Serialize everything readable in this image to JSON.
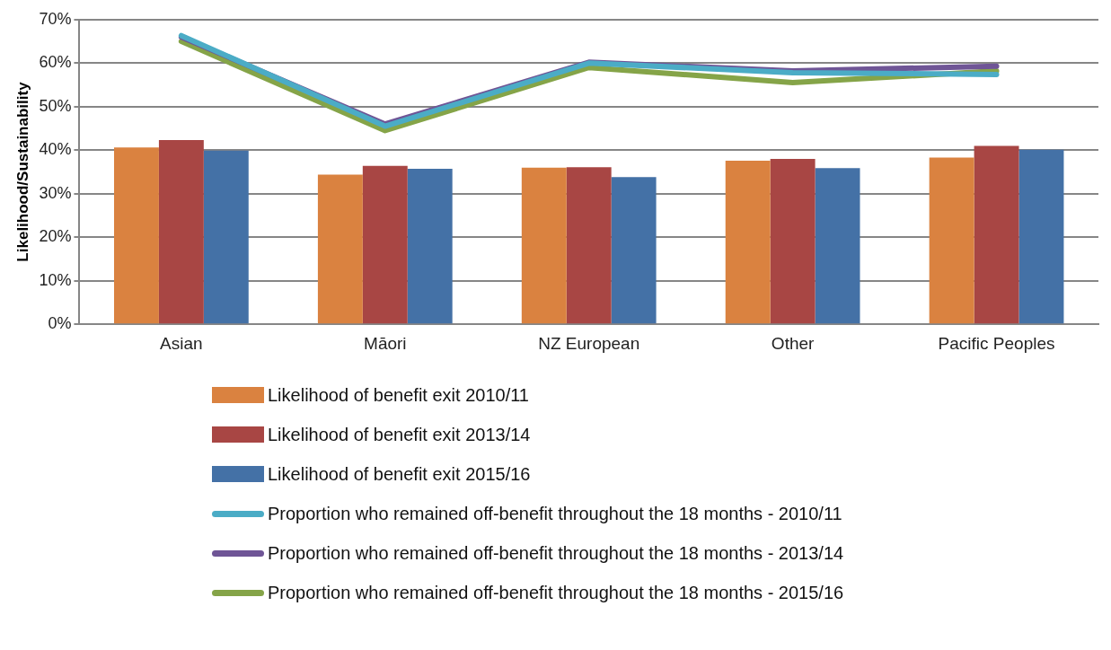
{
  "chart_data": {
    "type": "bar",
    "ylabel": "Likelihood/Sustainability",
    "categories": [
      "Asian",
      "Māori",
      "NZ European",
      "Other",
      "Pacific Peoples"
    ],
    "series": [
      {
        "name": "Likelihood of benefit exit 2010/11",
        "color": "#da8240",
        "values": [
          40.6,
          34.4,
          36.0,
          37.6,
          38.3
        ]
      },
      {
        "name": "Likelihood of benefit exit 2013/14",
        "color": "#a84644",
        "values": [
          42.3,
          36.4,
          36.1,
          38.0,
          41.0
        ]
      },
      {
        "name": "Likelihood of benefit exit 2015/16",
        "color": "#4471a6",
        "values": [
          39.9,
          35.7,
          33.8,
          35.9,
          40.1
        ]
      },
      {
        "name": "Proportion who remained off-benefit throughout the 18 months - 2010/11",
        "type": "line",
        "color": "#4bacc6",
        "values": [
          66.3,
          45.5,
          60.0,
          57.8,
          57.4
        ]
      },
      {
        "name": "Proportion who remained off-benefit throughout the 18 months - 2013/14",
        "type": "line",
        "color": "#6f5596",
        "values": [
          66.0,
          46.0,
          60.2,
          58.2,
          59.3
        ]
      },
      {
        "name": "Proportion who remained off-benefit throughout the 18 months - 2015/16",
        "type": "line",
        "color": "#85a448",
        "values": [
          65.0,
          44.5,
          59.0,
          55.5,
          58.2
        ]
      }
    ],
    "ylim": [
      0,
      70
    ],
    "yticks": [
      {
        "value": 0,
        "label": "0%"
      },
      {
        "value": 10,
        "label": "10%"
      },
      {
        "value": 20,
        "label": "20%"
      },
      {
        "value": 30,
        "label": "30%"
      },
      {
        "value": 40,
        "label": "40%"
      },
      {
        "value": 50,
        "label": "50%"
      },
      {
        "value": 60,
        "label": "60%"
      },
      {
        "value": 70,
        "label": "70%"
      }
    ],
    "grid": "y",
    "legend": "bottom",
    "marker": "none",
    "line_style": "solid"
  }
}
